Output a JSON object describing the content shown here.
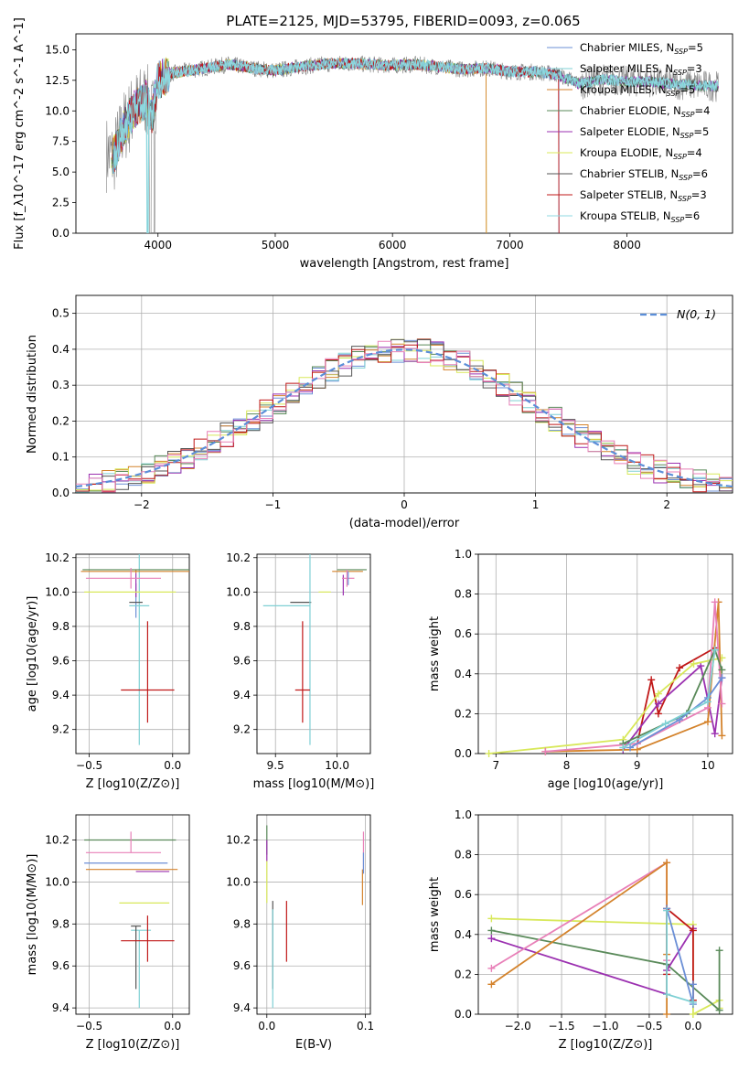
{
  "figure": {
    "title": "PLATE=2125, MJD=53795, FIBERID=0093, z=0.065"
  },
  "colors": {
    "chabrier_miles": "#6b8fd6",
    "salpeter_miles": "#7fd0d4",
    "kroupa_miles": "#d4832c",
    "chabrier_elodie": "#5a8a5a",
    "salpeter_elodie": "#9b30b0",
    "kroupa_elodie": "#d8e85a",
    "chabrier_stelib": "#555555",
    "salpeter_stelib": "#c01818",
    "kroupa_stelib": "#8fd8e0",
    "normal_line": "#5b8ed8",
    "hist_pink": "#e880b8",
    "grid": "#b0b0b0",
    "data_grey": "#808080"
  },
  "chart_data": [
    {
      "id": "spectrum",
      "type": "line",
      "title": "PLATE=2125, MJD=53795, FIBERID=0093, z=0.065",
      "xlabel": "wavelength [Angstrom, rest frame]",
      "ylabel": "Flux [f_λ10^-17 erg cm^-2 s^-1 A^-1]",
      "xlim": [
        3300,
        8900
      ],
      "ylim": [
        0,
        16.3
      ],
      "xticks": [
        4000,
        5000,
        6000,
        7000,
        8000
      ],
      "yticks": [
        0.0,
        2.5,
        5.0,
        7.5,
        10.0,
        12.5,
        15.0
      ],
      "grid": false,
      "legend_position": "top-right",
      "legend": [
        {
          "label": "Chabrier MILES, N_SSP=5",
          "color_key": "chabrier_miles"
        },
        {
          "label": "Salpeter MILES, N_SSP=3",
          "color_key": "salpeter_miles"
        },
        {
          "label": "Kroupa MILES, N_SSP=5",
          "color_key": "kroupa_miles"
        },
        {
          "label": "Chabrier ELODIE, N_SSP=4",
          "color_key": "chabrier_elodie"
        },
        {
          "label": "Salpeter ELODIE, N_SSP=5",
          "color_key": "salpeter_elodie"
        },
        {
          "label": "Kroupa ELODIE, N_SSP=4",
          "color_key": "kroupa_elodie"
        },
        {
          "label": "Chabrier STELIB, N_SSP=6",
          "color_key": "chabrier_stelib"
        },
        {
          "label": "Salpeter STELIB, N_SSP=3",
          "color_key": "salpeter_stelib"
        },
        {
          "label": "Kroupa STELIB, N_SSP=6",
          "color_key": "kroupa_stelib"
        }
      ],
      "continuum": {
        "x": [
          3560,
          3620,
          3700,
          3800,
          3900,
          3950,
          4000,
          4100,
          4200,
          4400,
          4600,
          4800,
          5000,
          5200,
          5400,
          5600,
          5800,
          6000,
          6200,
          6400,
          6600,
          6800,
          7000,
          7200,
          7400,
          7600,
          7800,
          8000,
          8200,
          8400,
          8800
        ],
        "y": [
          6.5,
          6.2,
          8.5,
          10.2,
          11.0,
          9.5,
          12.5,
          13.0,
          13.2,
          13.5,
          13.8,
          13.5,
          13.3,
          13.6,
          13.8,
          13.9,
          13.8,
          13.7,
          13.8,
          13.6,
          13.4,
          13.5,
          13.2,
          13.2,
          13.0,
          12.2,
          12.6,
          12.4,
          12.4,
          12.2,
          12.0
        ]
      }
    },
    {
      "id": "residuals",
      "type": "histogram",
      "xlabel": "(data-model)/error",
      "ylabel": "Normed distribution",
      "xlim": [
        -2.5,
        2.5
      ],
      "ylim": [
        0,
        0.55
      ],
      "xticks": [
        -2,
        -1,
        0,
        1,
        2
      ],
      "yticks": [
        0.0,
        0.1,
        0.2,
        0.3,
        0.4,
        0.5
      ],
      "grid": true,
      "legend_position": "top-right",
      "legend": [
        {
          "label": "N(0, 1)",
          "color_key": "normal_line"
        }
      ],
      "bin_width": 0.1
    },
    {
      "id": "age_vs_z",
      "type": "scatter",
      "xlabel": "Z [log10(Z/Z⊙)]",
      "ylabel": "age [log10(age/yr)]",
      "xlim": [
        -0.58,
        0.1
      ],
      "ylim": [
        9.06,
        10.22
      ],
      "xticks": [
        -0.5,
        0.0
      ],
      "yticks": [
        9.2,
        9.4,
        9.6,
        9.8,
        10.0,
        10.2
      ],
      "grid": true,
      "points": [
        {
          "series": "chabrier_miles",
          "x": -0.22,
          "y": 9.95,
          "xerr": [
            0.0,
            0.0
          ],
          "yerr": [
            0.1,
            0.1
          ]
        },
        {
          "series": "salpeter_miles",
          "x": -0.2,
          "y": 9.92,
          "xerr": [
            0.06,
            0.06
          ],
          "yerr": [
            0.81,
            0.3
          ]
        },
        {
          "series": "kroupa_miles",
          "x": -0.22,
          "y": 10.12,
          "xerr": [
            0.33,
            0.33
          ],
          "yerr": [
            0.01,
            0.01
          ]
        },
        {
          "series": "chabrier_elodie",
          "x": -0.23,
          "y": 10.13,
          "xerr": [
            0.31,
            0.33
          ],
          "yerr": [
            0.0,
            0.0
          ]
        },
        {
          "series": "salpeter_elodie",
          "x": -0.22,
          "y": 10.04,
          "xerr": [
            0.0,
            0.0
          ],
          "yerr": [
            0.07,
            0.07
          ]
        },
        {
          "series": "kroupa_elodie",
          "x": -0.27,
          "y": 10.0,
          "xerr": [
            0.26,
            0.29
          ],
          "yerr": [
            0.0,
            0.0
          ]
        },
        {
          "series": "chabrier_stelib",
          "x": -0.22,
          "y": 9.94,
          "xerr": [
            0.04,
            0.04
          ],
          "yerr": [
            0.0,
            0.0
          ]
        },
        {
          "series": "salpeter_stelib",
          "x": -0.15,
          "y": 9.43,
          "xerr": [
            0.16,
            0.16
          ],
          "yerr": [
            0.19,
            0.4
          ]
        },
        {
          "series": "hist_pink",
          "x": -0.25,
          "y": 10.08,
          "xerr": [
            0.27,
            0.18
          ],
          "yerr": [
            0.06,
            0.06
          ]
        }
      ]
    },
    {
      "id": "age_vs_mass",
      "type": "scatter",
      "xlabel": "mass [log10(M/M⊙)]",
      "ylabel": "",
      "xlim": [
        9.35,
        10.27
      ],
      "ylim": [
        9.06,
        10.22
      ],
      "xticks": [
        9.5,
        10.0
      ],
      "yticks": [
        9.2,
        9.4,
        9.6,
        9.8,
        10.0,
        10.2
      ],
      "grid": true
    },
    {
      "id": "mass_weight_vs_age",
      "type": "line",
      "xlabel": "age [log10(age/yr)]",
      "ylabel": "mass weight",
      "xlim": [
        6.75,
        10.35
      ],
      "ylim": [
        0,
        1
      ],
      "xticks": [
        7,
        8,
        9,
        10
      ],
      "yticks": [
        0.0,
        0.2,
        0.4,
        0.6,
        0.8,
        1.0
      ],
      "grid": true,
      "series": [
        {
          "name": "",
          "color_key": "salpeter_stelib",
          "x": [
            9.0,
            9.2,
            9.3,
            9.6,
            10.1
          ],
          "y": [
            0.05,
            0.37,
            0.2,
            0.43,
            0.53
          ]
        },
        {
          "name": "",
          "color_key": "salpeter_elodie",
          "x": [
            8.8,
            9.3,
            9.9,
            10.1,
            10.2
          ],
          "y": [
            0.02,
            0.25,
            0.44,
            0.1,
            0.38
          ]
        },
        {
          "name": "",
          "color_key": "kroupa_elodie",
          "x": [
            6.9,
            8.8,
            9.3,
            9.8,
            10.2
          ],
          "y": [
            0.0,
            0.07,
            0.3,
            0.45,
            0.48
          ]
        },
        {
          "name": "",
          "color_key": "kroupa_miles",
          "x": [
            7.7,
            9.0,
            10.0,
            10.15,
            10.2
          ],
          "y": [
            0.01,
            0.02,
            0.16,
            0.76,
            0.09
          ]
        },
        {
          "name": "",
          "color_key": "hist_pink",
          "x": [
            7.7,
            9.0,
            10.0,
            10.1,
            10.2
          ],
          "y": [
            0.01,
            0.05,
            0.23,
            0.76,
            0.25
          ]
        },
        {
          "name": "",
          "color_key": "chabrier_elodie",
          "x": [
            8.8,
            9.7,
            10.1,
            10.2
          ],
          "y": [
            0.05,
            0.2,
            0.52,
            0.42
          ]
        },
        {
          "name": "",
          "color_key": "chabrier_miles",
          "x": [
            8.9,
            9.6,
            10.0,
            10.2
          ],
          "y": [
            0.03,
            0.17,
            0.28,
            0.38
          ]
        },
        {
          "name": "",
          "color_key": "salpeter_miles",
          "x": [
            8.8,
            9.4,
            10.0,
            10.1
          ],
          "y": [
            0.03,
            0.15,
            0.26,
            0.52
          ]
        }
      ]
    },
    {
      "id": "mass_vs_z",
      "type": "scatter",
      "xlabel": "Z [log10(Z/Z⊙)]",
      "ylabel": "mass [log10(M/M⊙)]",
      "xlim": [
        -0.58,
        0.1
      ],
      "ylim": [
        9.37,
        10.32
      ],
      "xticks": [
        -0.5,
        0.0
      ],
      "yticks": [
        9.4,
        9.6,
        9.8,
        10.0,
        10.2
      ],
      "grid": true,
      "points": [
        {
          "series": "chabrier_miles",
          "x": -0.25,
          "y": 10.09,
          "xerr": [
            0.28,
            0.22
          ],
          "yerr": [
            0.0,
            0.0
          ]
        },
        {
          "series": "salpeter_miles",
          "x": -0.2,
          "y": 9.77,
          "xerr": [
            0.05,
            0.07
          ],
          "yerr": [
            0.37,
            0.0
          ]
        },
        {
          "series": "kroupa_miles",
          "x": -0.22,
          "y": 10.06,
          "xerr": [
            0.3,
            0.25
          ],
          "yerr": [
            0.0,
            0.0
          ]
        },
        {
          "series": "chabrier_elodie",
          "x": -0.24,
          "y": 10.2,
          "xerr": [
            0.29,
            0.26
          ],
          "yerr": [
            0.0,
            0.0
          ]
        },
        {
          "series": "salpeter_elodie",
          "x": -0.22,
          "y": 10.05,
          "xerr": [
            0.0,
            0.2
          ],
          "yerr": [
            0.0,
            0.0
          ]
        },
        {
          "series": "kroupa_elodie",
          "x": -0.17,
          "y": 9.9,
          "xerr": [
            0.15,
            0.15
          ],
          "yerr": [
            0.0,
            0.0
          ]
        },
        {
          "series": "chabrier_stelib",
          "x": -0.22,
          "y": 9.79,
          "xerr": [
            0.03,
            0.03
          ],
          "yerr": [
            0.3,
            0.0
          ]
        },
        {
          "series": "salpeter_stelib",
          "x": -0.15,
          "y": 9.72,
          "xerr": [
            0.16,
            0.16
          ],
          "yerr": [
            0.1,
            0.12
          ]
        },
        {
          "series": "hist_pink",
          "x": -0.25,
          "y": 10.14,
          "xerr": [
            0.27,
            0.18
          ],
          "yerr": [
            0.0,
            0.1
          ]
        }
      ]
    },
    {
      "id": "mass_vs_ebv",
      "type": "scatter",
      "xlabel": "E(B-V)",
      "ylabel": "",
      "xlim": [
        -0.01,
        0.105
      ],
      "ylim": [
        9.37,
        10.32
      ],
      "xticks": [
        0.0,
        0.1
      ],
      "yticks": [
        9.4,
        9.6,
        9.8,
        10.0,
        10.2
      ],
      "grid": true
    },
    {
      "id": "mass_weight_vs_z",
      "type": "line",
      "xlabel": "Z [log10(Z/Z⊙)]",
      "ylabel": "mass weight",
      "xlim": [
        -2.45,
        0.45
      ],
      "ylim": [
        0,
        1
      ],
      "xticks": [
        -2.0,
        -1.5,
        -1.0,
        -0.5,
        0.0
      ],
      "yticks": [
        0.0,
        0.2,
        0.4,
        0.6,
        0.8,
        1.0
      ],
      "grid": true,
      "series": [
        {
          "name": "",
          "color_key": "kroupa_elodie",
          "x": [
            -2.3,
            0.0,
            0.0,
            0.3,
            0.3
          ],
          "y": [
            0.48,
            0.45,
            0.0,
            0.07,
            0.03
          ]
        },
        {
          "name": "",
          "color_key": "chabrier_elodie",
          "x": [
            -2.3,
            -0.3,
            0.3,
            0.3
          ],
          "y": [
            0.42,
            0.25,
            0.02,
            0.32
          ]
        },
        {
          "name": "",
          "color_key": "salpeter_elodie",
          "x": [
            -2.3,
            -0.3,
            -0.3,
            0.0
          ],
          "y": [
            0.38,
            0.1,
            0.22,
            0.43
          ]
        },
        {
          "name": "",
          "color_key": "hist_pink",
          "x": [
            -2.3,
            -0.3,
            -0.3
          ],
          "y": [
            0.23,
            0.76,
            0.27
          ]
        },
        {
          "name": "",
          "color_key": "kroupa_miles",
          "x": [
            -2.3,
            -0.3,
            -0.3,
            -0.3
          ],
          "y": [
            0.15,
            0.76,
            0.0,
            0.3
          ]
        },
        {
          "name": "",
          "color_key": "salpeter_stelib",
          "x": [
            -0.3,
            -0.3,
            0.0,
            0.0
          ],
          "y": [
            0.2,
            0.53,
            0.42,
            0.07
          ]
        },
        {
          "name": "",
          "color_key": "chabrier_miles",
          "x": [
            -0.3,
            0.0,
            0.0
          ],
          "y": [
            0.53,
            0.05,
            0.15
          ]
        },
        {
          "name": "",
          "color_key": "salpeter_miles",
          "x": [
            -0.3,
            -0.3,
            0.0
          ],
          "y": [
            0.52,
            0.1,
            0.06
          ]
        }
      ]
    }
  ]
}
